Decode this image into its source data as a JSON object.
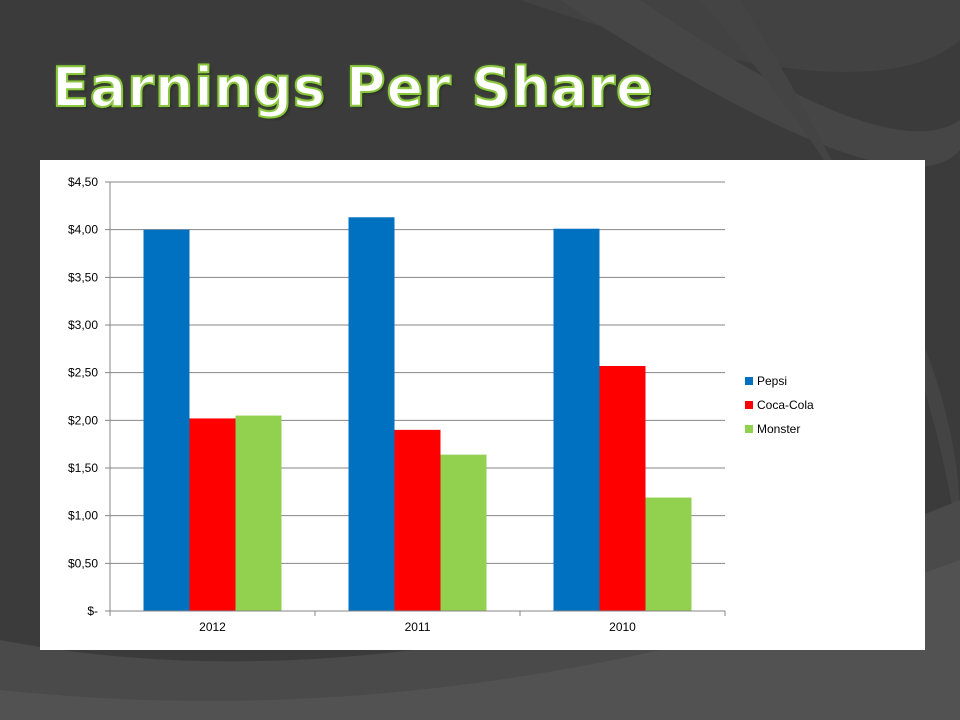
{
  "slide": {
    "title": "Earnings Per Share",
    "title_color": "#ffffff",
    "title_outline_color": "#8bc83f",
    "background_color": "#3b3b3b"
  },
  "chart_data": {
    "type": "bar",
    "title": "",
    "xlabel": "",
    "ylabel": "",
    "categories": [
      "2012",
      "2011",
      "2010"
    ],
    "series": [
      {
        "name": "Pepsi",
        "color": "#0070c0",
        "values": [
          4.0,
          4.13,
          4.01
        ]
      },
      {
        "name": "Coca-Cola",
        "color": "#ff0000",
        "values": [
          2.02,
          1.9,
          2.57
        ]
      },
      {
        "name": "Monster",
        "color": "#92d050",
        "values": [
          2.05,
          1.64,
          1.19
        ]
      }
    ],
    "ylim": [
      0,
      4.5
    ],
    "yticks": [
      {
        "value": 0,
        "label": "$-"
      },
      {
        "value": 0.5,
        "label": "$0,50"
      },
      {
        "value": 1.0,
        "label": "$1,00"
      },
      {
        "value": 1.5,
        "label": "$1,50"
      },
      {
        "value": 2.0,
        "label": "$2,00"
      },
      {
        "value": 2.5,
        "label": "$2,50"
      },
      {
        "value": 3.0,
        "label": "$3,00"
      },
      {
        "value": 3.5,
        "label": "$3,50"
      },
      {
        "value": 4.0,
        "label": "$4,00"
      },
      {
        "value": 4.5,
        "label": "$4,50"
      }
    ],
    "grid": true,
    "legend_position": "right",
    "plot_background": "#ffffff"
  }
}
